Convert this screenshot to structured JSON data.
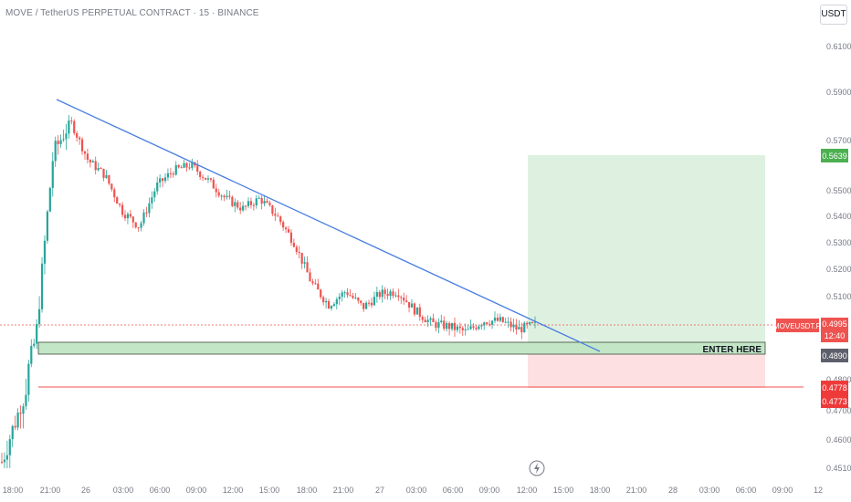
{
  "header": {
    "title": "MOVE / TetherUS PERPETUAL CONTRACT · 15 · BINANCE",
    "currency_button": "USDT"
  },
  "colors": {
    "up": "#26a69a",
    "down": "#ef5350",
    "trendline": "#4a7fe0",
    "target_zone": "#d8eedb",
    "stop_zone": "#fde0e1",
    "entry_zone": "#c3e6c6",
    "stop_line": "#ef5350"
  },
  "chart_data": {
    "type": "candlestick",
    "title": "MOVE / TetherUS PERPETUAL CONTRACT · 15 · BINANCE",
    "y_axis_ticks": [
      "0.6100",
      "0.5900",
      "0.5700",
      "0.5500",
      "0.5400",
      "0.5300",
      "0.5200",
      "0.5100",
      "0.4800",
      "0.4700",
      "0.4600",
      "0.4510"
    ],
    "x_axis_ticks": [
      "18:00",
      "21:00",
      "26",
      "03:00",
      "06:00",
      "09:00",
      "12:00",
      "15:00",
      "18:00",
      "21:00",
      "27",
      "03:00",
      "06:00",
      "09:00",
      "12:00",
      "15:00",
      "18:00",
      "21:00",
      "28",
      "03:00",
      "06:00",
      "09:00",
      "12"
    ],
    "approx_close_path": [
      0.453,
      0.47,
      0.496,
      0.565,
      0.578,
      0.562,
      0.556,
      0.542,
      0.536,
      0.552,
      0.558,
      0.56,
      0.554,
      0.547,
      0.543,
      0.547,
      0.54,
      0.53,
      0.515,
      0.507,
      0.512,
      0.506,
      0.511,
      0.512,
      0.505,
      0.5,
      0.499,
      0.497,
      0.501,
      0.501,
      0.498,
      0.4995
    ],
    "trendline": {
      "start": {
        "x": "~21:00 (25th)",
        "y": 0.587
      },
      "end": {
        "x": "~17:00 (27th)",
        "y": 0.485
      }
    },
    "annotations": {
      "enter_label": "ENTER HERE",
      "entry_zone": [
        0.487,
        0.492
      ],
      "target_zone": [
        0.492,
        0.5639
      ],
      "stop_zone": [
        0.4773,
        0.487
      ]
    },
    "price_tags": {
      "symbol": "MOVEUSDT.P",
      "last_price": "0.4995",
      "countdown": "12:40",
      "target": "0.5639",
      "entry": "0.4890",
      "stop_upper": "0.4778",
      "stop_lower": "0.4773"
    },
    "grid": false
  }
}
